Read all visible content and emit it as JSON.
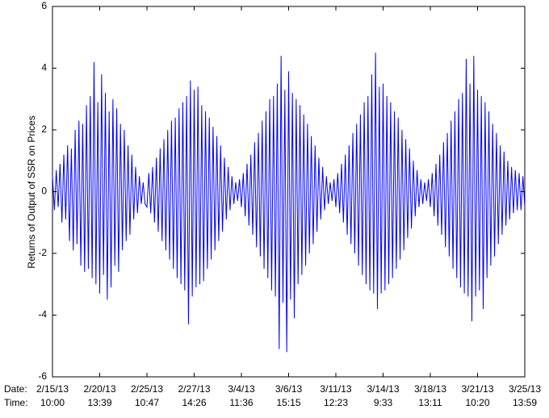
{
  "chart_data": {
    "type": "line",
    "ylabel": "Returns of Output of SSR on Prices",
    "x_row_labels": [
      "Date:",
      "Time:"
    ],
    "color": "#0000ff",
    "xlim": [
      0,
      250
    ],
    "ylim": [
      -6,
      6
    ],
    "yticks": [
      -6,
      -4,
      -2,
      0,
      2,
      4,
      6
    ],
    "xticks": [
      {
        "value": 0,
        "label": "2/15/13",
        "time": "10:00"
      },
      {
        "value": 25,
        "label": "2/20/13",
        "time": "13:39"
      },
      {
        "value": 50,
        "label": "2/25/13",
        "time": "10:47"
      },
      {
        "value": 75,
        "label": "2/27/13",
        "time": "14:26"
      },
      {
        "value": 100,
        "label": "3/4/13",
        "time": "11:36"
      },
      {
        "value": 125,
        "label": "3/6/13",
        "time": "15:15"
      },
      {
        "value": 150,
        "label": "3/11/13",
        "time": "12:23"
      },
      {
        "value": 175,
        "label": "3/14/13",
        "time": "9:33"
      },
      {
        "value": 200,
        "label": "3/18/13",
        "time": "13:11"
      },
      {
        "value": 225,
        "label": "3/21/13",
        "time": "10:20"
      },
      {
        "value": 250,
        "label": "3/25/13",
        "time": "13:59"
      }
    ],
    "x": [
      0,
      1,
      2,
      3,
      4,
      5,
      6,
      7,
      8,
      9,
      10,
      11,
      12,
      13,
      14,
      15,
      16,
      17,
      18,
      19,
      20,
      21,
      22,
      23,
      24,
      25,
      26,
      27,
      28,
      29,
      30,
      31,
      32,
      33,
      34,
      35,
      36,
      37,
      38,
      39,
      40,
      41,
      42,
      43,
      44,
      45,
      46,
      47,
      48,
      49,
      50,
      51,
      52,
      53,
      54,
      55,
      56,
      57,
      58,
      59,
      60,
      61,
      62,
      63,
      64,
      65,
      66,
      67,
      68,
      69,
      70,
      71,
      72,
      73,
      74,
      75,
      76,
      77,
      78,
      79,
      80,
      81,
      82,
      83,
      84,
      85,
      86,
      87,
      88,
      89,
      90,
      91,
      92,
      93,
      94,
      95,
      96,
      97,
      98,
      99,
      100,
      101,
      102,
      103,
      104,
      105,
      106,
      107,
      108,
      109,
      110,
      111,
      112,
      113,
      114,
      115,
      116,
      117,
      118,
      119,
      120,
      121,
      122,
      123,
      124,
      125,
      126,
      127,
      128,
      129,
      130,
      131,
      132,
      133,
      134,
      135,
      136,
      137,
      138,
      139,
      140,
      141,
      142,
      143,
      144,
      145,
      146,
      147,
      148,
      149,
      150,
      151,
      152,
      153,
      154,
      155,
      156,
      157,
      158,
      159,
      160,
      161,
      162,
      163,
      164,
      165,
      166,
      167,
      168,
      169,
      170,
      171,
      172,
      173,
      174,
      175,
      176,
      177,
      178,
      179,
      180,
      181,
      182,
      183,
      184,
      185,
      186,
      187,
      188,
      189,
      190,
      191,
      192,
      193,
      194,
      195,
      196,
      197,
      198,
      199,
      200,
      201,
      202,
      203,
      204,
      205,
      206,
      207,
      208,
      209,
      210,
      211,
      212,
      213,
      214,
      215,
      216,
      217,
      218,
      219,
      220,
      221,
      222,
      223,
      224,
      225,
      226,
      227,
      228,
      229,
      230,
      231,
      232,
      233,
      234,
      235,
      236,
      237,
      238,
      239,
      240,
      241,
      242,
      243,
      244,
      245,
      246,
      247,
      248,
      249,
      250
    ],
    "values": [
      0.5,
      -0.6,
      0.7,
      -0.5,
      0.9,
      -1.0,
      1.2,
      -0.9,
      1.5,
      -1.6,
      1.4,
      -1.9,
      2.0,
      -1.7,
      2.3,
      -2.4,
      2.2,
      -2.6,
      2.8,
      -2.5,
      3.1,
      -2.8,
      4.2,
      -3.0,
      2.9,
      -3.3,
      3.8,
      -2.7,
      3.2,
      -3.5,
      2.6,
      -3.1,
      3.0,
      -2.4,
      2.7,
      -2.6,
      2.2,
      -1.9,
      2.0,
      -1.6,
      1.5,
      -1.4,
      1.2,
      -0.9,
      0.8,
      -0.7,
      0.5,
      -0.4,
      0.3,
      -0.4,
      -0.5,
      0.6,
      -0.7,
      0.8,
      -1.0,
      1.1,
      -1.3,
      1.4,
      -1.6,
      1.7,
      -1.9,
      2.0,
      -2.2,
      2.3,
      -2.5,
      2.4,
      -2.8,
      2.7,
      -3.0,
      2.9,
      -3.2,
      3.1,
      -4.3,
      3.6,
      -3.4,
      3.3,
      -3.1,
      3.4,
      -3.0,
      2.8,
      -2.9,
      2.6,
      -2.5,
      2.4,
      -2.2,
      2.1,
      -1.9,
      1.8,
      -1.6,
      1.5,
      -1.3,
      1.1,
      -0.9,
      0.8,
      -0.6,
      0.5,
      -0.4,
      0.3,
      -0.3,
      0.4,
      -0.5,
      0.6,
      -0.8,
      0.9,
      -1.1,
      1.2,
      -1.4,
      1.6,
      -1.8,
      1.9,
      -2.1,
      2.3,
      -2.5,
      2.6,
      -2.8,
      3.0,
      -3.2,
      3.1,
      -3.4,
      3.5,
      -5.1,
      4.4,
      -3.6,
      3.3,
      -5.2,
      3.9,
      -3.5,
      3.2,
      -4.1,
      3.0,
      -3.0,
      2.8,
      -2.7,
      2.5,
      -2.4,
      2.2,
      -2.0,
      1.8,
      -1.7,
      1.5,
      -1.3,
      1.1,
      -0.9,
      0.8,
      -0.6,
      0.5,
      -0.4,
      0.3,
      -0.3,
      0.4,
      -0.5,
      0.6,
      -0.7,
      0.9,
      -1.0,
      1.2,
      -1.4,
      1.5,
      -1.7,
      1.9,
      -2.0,
      2.2,
      -2.4,
      2.5,
      -2.7,
      2.9,
      -3.0,
      3.1,
      -3.2,
      3.8,
      -3.3,
      4.5,
      -3.8,
      3.4,
      -3.3,
      3.5,
      -3.2,
      3.1,
      -3.0,
      2.9,
      -2.8,
      2.6,
      -2.5,
      2.4,
      -2.2,
      2.0,
      -1.9,
      1.7,
      -1.5,
      1.4,
      -1.2,
      1.0,
      -0.8,
      0.7,
      -0.5,
      0.4,
      -0.4,
      0.3,
      -0.3,
      0.4,
      -0.5,
      0.6,
      -0.8,
      0.9,
      -1.1,
      1.2,
      -1.4,
      1.6,
      -1.8,
      1.9,
      -2.1,
      2.3,
      -2.5,
      2.6,
      -2.8,
      3.0,
      -3.1,
      3.2,
      -3.3,
      4.3,
      -3.4,
      3.5,
      -4.2,
      4.4,
      -3.4,
      3.3,
      -3.2,
      3.1,
      -3.8,
      2.9,
      -2.8,
      2.6,
      -2.4,
      2.2,
      -2.1,
      1.9,
      -1.7,
      1.5,
      -1.4,
      1.3,
      -1.1,
      1.0,
      -0.9,
      0.8,
      -0.7,
      0.7,
      -0.6,
      0.6,
      -0.6,
      0.5,
      -0.5
    ]
  }
}
